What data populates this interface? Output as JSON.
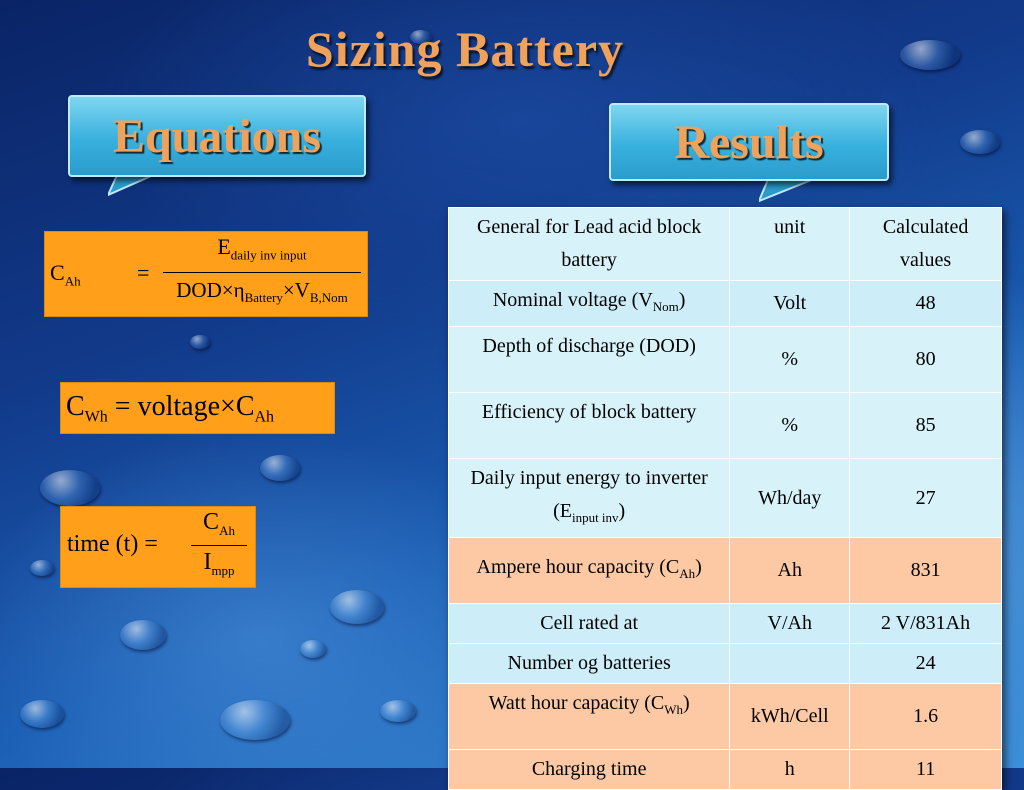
{
  "slide": {
    "title": "Sizing Battery",
    "equations_label": "Equations",
    "results_label": "Results"
  },
  "equations": {
    "eq1": {
      "lhs_main": "C",
      "lhs_sub": "Ah",
      "equals": "=",
      "num_main": "E",
      "num_sub": "daily inv input",
      "den_a": "DOD",
      "times1": "×",
      "den_eta": "η",
      "den_eta_sub": "Battery",
      "times2": "×",
      "den_v": "V",
      "den_v_sub": "B,Nom"
    },
    "eq2": {
      "lhs_main": "C",
      "lhs_sub": "Wh",
      "equals": "=",
      "word": "voltage",
      "times": "×",
      "rhs_main": "C",
      "rhs_sub": "Ah"
    },
    "eq3": {
      "lhs": "time (t)",
      "equals": "=",
      "num_main": "C",
      "num_sub": "Ah",
      "den_main": "I",
      "den_sub": "mpp"
    }
  },
  "table": {
    "header": {
      "col1": "General for Lead acid block battery",
      "col2": "unit",
      "col3": "Calculated values"
    },
    "rows": [
      {
        "label": "Nominal voltage (V",
        "label_sub": "Nom",
        "label_tail": ")",
        "unit": "Volt",
        "value": "48"
      },
      {
        "label": "Depth of discharge (DOD)",
        "unit": "%",
        "value": "80"
      },
      {
        "label": "Efficiency of block battery",
        "unit": "%",
        "value": "85"
      },
      {
        "label": "Daily input energy to inverter (E",
        "label_sub": "input inv",
        "label_tail": ")",
        "unit": "Wh/day",
        "value": "27"
      },
      {
        "label": "Ampere hour capacity (C",
        "label_sub": "Ah",
        "label_tail": ")",
        "unit": "Ah",
        "value": "831"
      },
      {
        "label": "Cell rated at",
        "unit": "V/Ah",
        "value": "2 V/831Ah"
      },
      {
        "label": "Number og batteries",
        "unit": "",
        "value": "24"
      },
      {
        "label": "Watt hour capacity (C",
        "label_sub": "Wh",
        "label_tail": ")",
        "unit": "kWh/Cell",
        "value": "1.6"
      },
      {
        "label": "Charging time",
        "unit": "h",
        "value": "11"
      }
    ]
  },
  "colors": {
    "title_orange": "#f0a25a",
    "equation_box": "#ff9f1a",
    "callout_blue": "#38b0de",
    "row_blue": "#d8f2fa",
    "row_orange": "#fcc9a4"
  }
}
